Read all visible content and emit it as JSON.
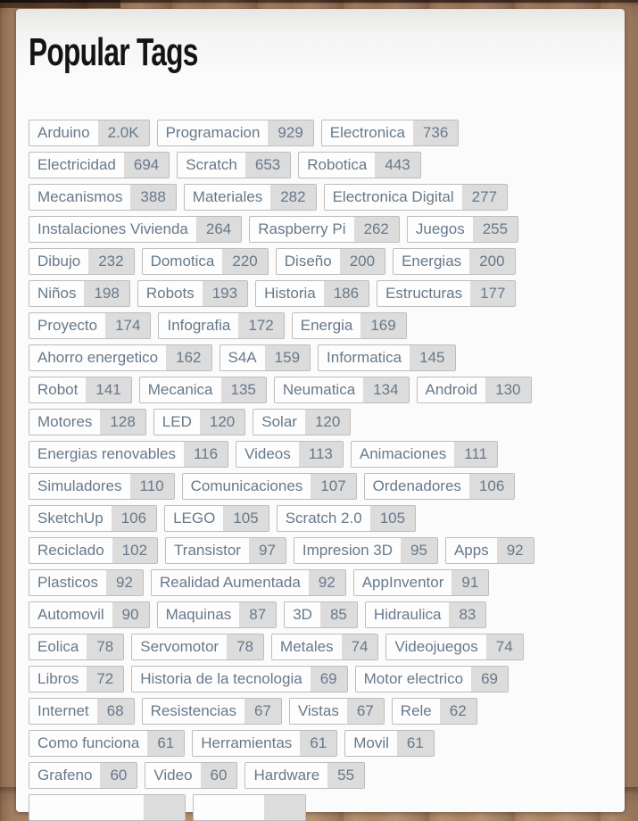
{
  "header": {
    "title": "Popular Tags"
  },
  "tag_rows": [
    [
      {
        "label": "Arduino",
        "count": "2.0K"
      },
      {
        "label": "Programacion",
        "count": "929"
      },
      {
        "label": "Electronica",
        "count": "736"
      }
    ],
    [
      {
        "label": "Electricidad",
        "count": "694"
      },
      {
        "label": "Scratch",
        "count": "653"
      },
      {
        "label": "Robotica",
        "count": "443"
      }
    ],
    [
      {
        "label": "Mecanismos",
        "count": "388"
      },
      {
        "label": "Materiales",
        "count": "282"
      },
      {
        "label": "Electronica Digital",
        "count": "277"
      }
    ],
    [
      {
        "label": "Instalaciones Vivienda",
        "count": "264"
      },
      {
        "label": "Raspberry Pi",
        "count": "262"
      },
      {
        "label": "Juegos",
        "count": "255"
      }
    ],
    [
      {
        "label": "Dibujo",
        "count": "232"
      },
      {
        "label": "Domotica",
        "count": "220"
      },
      {
        "label": "Diseño",
        "count": "200"
      },
      {
        "label": "Energias",
        "count": "200"
      }
    ],
    [
      {
        "label": "Niños",
        "count": "198"
      },
      {
        "label": "Robots",
        "count": "193"
      },
      {
        "label": "Historia",
        "count": "186"
      },
      {
        "label": "Estructuras",
        "count": "177"
      }
    ],
    [
      {
        "label": "Proyecto",
        "count": "174"
      },
      {
        "label": "Infografia",
        "count": "172"
      },
      {
        "label": "Energia",
        "count": "169"
      }
    ],
    [
      {
        "label": "Ahorro energetico",
        "count": "162"
      },
      {
        "label": "S4A",
        "count": "159"
      },
      {
        "label": "Informatica",
        "count": "145"
      }
    ],
    [
      {
        "label": "Robot",
        "count": "141"
      },
      {
        "label": "Mecanica",
        "count": "135"
      },
      {
        "label": "Neumatica",
        "count": "134"
      },
      {
        "label": "Android",
        "count": "130"
      }
    ],
    [
      {
        "label": "Motores",
        "count": "128"
      },
      {
        "label": "LED",
        "count": "120"
      },
      {
        "label": "Solar",
        "count": "120"
      }
    ],
    [
      {
        "label": "Energias renovables",
        "count": "116"
      },
      {
        "label": "Videos",
        "count": "113"
      },
      {
        "label": "Animaciones",
        "count": "111"
      }
    ],
    [
      {
        "label": "Simuladores",
        "count": "110"
      },
      {
        "label": "Comunicaciones",
        "count": "107"
      },
      {
        "label": "Ordenadores",
        "count": "106"
      }
    ],
    [
      {
        "label": "SketchUp",
        "count": "106"
      },
      {
        "label": "LEGO",
        "count": "105"
      },
      {
        "label": "Scratch 2.0",
        "count": "105"
      }
    ],
    [
      {
        "label": "Reciclado",
        "count": "102"
      },
      {
        "label": "Transistor",
        "count": "97"
      },
      {
        "label": "Impresion 3D",
        "count": "95"
      },
      {
        "label": "Apps",
        "count": "92"
      }
    ],
    [
      {
        "label": "Plasticos",
        "count": "92"
      },
      {
        "label": "Realidad Aumentada",
        "count": "92"
      },
      {
        "label": "AppInventor",
        "count": "91"
      }
    ],
    [
      {
        "label": "Automovil",
        "count": "90"
      },
      {
        "label": "Maquinas",
        "count": "87"
      },
      {
        "label": "3D",
        "count": "85"
      },
      {
        "label": "Hidraulica",
        "count": "83"
      }
    ],
    [
      {
        "label": "Eolica",
        "count": "78"
      },
      {
        "label": "Servomotor",
        "count": "78"
      },
      {
        "label": "Metales",
        "count": "74"
      },
      {
        "label": "Videojuegos",
        "count": "74"
      }
    ],
    [
      {
        "label": "Libros",
        "count": "72"
      },
      {
        "label": "Historia de la tecnologia",
        "count": "69"
      },
      {
        "label": "Motor electrico",
        "count": "69"
      }
    ],
    [
      {
        "label": "Internet",
        "count": "68"
      },
      {
        "label": "Resistencias",
        "count": "67"
      },
      {
        "label": "Vistas",
        "count": "67"
      },
      {
        "label": "Rele",
        "count": "62"
      }
    ],
    [
      {
        "label": "Como funciona",
        "count": "61"
      },
      {
        "label": "Herramientas",
        "count": "61"
      },
      {
        "label": "Movil",
        "count": "61"
      }
    ],
    [
      {
        "label": "Grafeno",
        "count": "60"
      },
      {
        "label": "Video",
        "count": "60"
      },
      {
        "label": "Hardware",
        "count": "55"
      }
    ]
  ],
  "partial_next_row": {
    "visible_cutoff_tags": 2
  },
  "colors": {
    "title": "#141414",
    "tag_text": "#67798a",
    "tag_border": "#bdbdbd",
    "label_bg": "#fdfdfd",
    "count_bg": "#dcdcdc",
    "card_bg": "#fbfbfb",
    "wood_base": "#b18a6b"
  }
}
